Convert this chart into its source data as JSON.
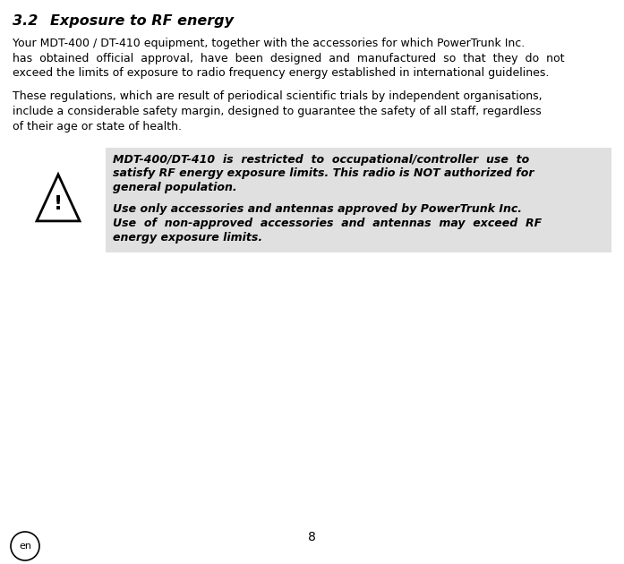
{
  "title_num": "3.2",
  "title_text": "Exposure to RF energy",
  "para1_lines": [
    "Your MDT-400 / DT-410 equipment, together with the accessories for which PowerTrunk Inc.",
    "has  obtained  official  approval,  have  been  designed  and  manufactured  so  that  they  do  not",
    "exceed the limits of exposure to radio frequency energy established in international guidelines."
  ],
  "para2_lines": [
    "These regulations, which are result of periodical scientific trials by independent organisations,",
    "include a considerable safety margin, designed to guarantee the safety of all staff, regardless",
    "of their age or state of health."
  ],
  "warn1_lines": [
    "MDT-400/DT-410  is  restricted  to  occupational/controller  use  to",
    "satisfy RF energy exposure limits. This radio is NOT authorized for",
    "general population."
  ],
  "warn2_lines": [
    "Use only accessories and antennas approved by PowerTrunk Inc.",
    "Use  of  non-approved  accessories  and  antennas  may  exceed  RF",
    "energy exposure limits."
  ],
  "page_num": "8",
  "lang_label": "en",
  "bg_color": "#ffffff",
  "text_color": "#000000",
  "warning_bg": "#e0e0e0",
  "body_fontsize": 9.0,
  "title_fontsize": 11.5,
  "warning_fontsize": 9.0
}
